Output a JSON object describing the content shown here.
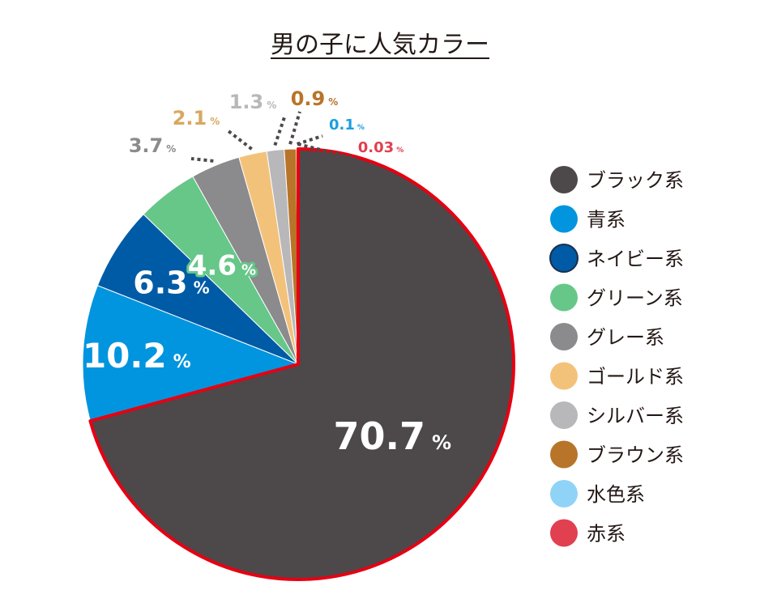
{
  "title": "男の子に人気カラー",
  "chart_data": {
    "type": "pie",
    "title": "男の子に人気カラー",
    "unit": "%",
    "legend_position": "right",
    "slices": [
      {
        "name": "ブラック系",
        "value": 70.7,
        "label": "70.7",
        "color": "#4d484a",
        "label_color": "#4d484a"
      },
      {
        "name": "青系",
        "value": 10.2,
        "label": "10.2",
        "color": "#0095de",
        "label_color": "#0095de"
      },
      {
        "name": "ネイビー系",
        "value": 6.3,
        "label": "6.3",
        "color": "#005ba6",
        "label_color": "#005ba6"
      },
      {
        "name": "グリーン系",
        "value": 4.6,
        "label": "4.6",
        "color": "#66c789",
        "label_color": "#66c789"
      },
      {
        "name": "グレー系",
        "value": 3.7,
        "label": "3.7",
        "color": "#8b8a8c",
        "label_color": "#8b8a8c"
      },
      {
        "name": "ゴールド系",
        "value": 2.1,
        "label": "2.1",
        "color": "#f3c27a",
        "label_color": "#d8a860"
      },
      {
        "name": "シルバー系",
        "value": 1.3,
        "label": "1.3",
        "color": "#b8b7b9",
        "label_color": "#b8b7b9"
      },
      {
        "name": "ブラウン系",
        "value": 0.9,
        "label": "0.9",
        "color": "#b87428",
        "label_color": "#b87428"
      },
      {
        "name": "水色系",
        "value": 0.1,
        "label": "0.1",
        "color": "#8fd4f7",
        "label_color": "#1a9fde"
      },
      {
        "name": "赤系",
        "value": 0.03,
        "label": "0.03",
        "color": "#e04050",
        "label_color": "#e04050"
      }
    ],
    "highlight_color": "#e60012"
  }
}
